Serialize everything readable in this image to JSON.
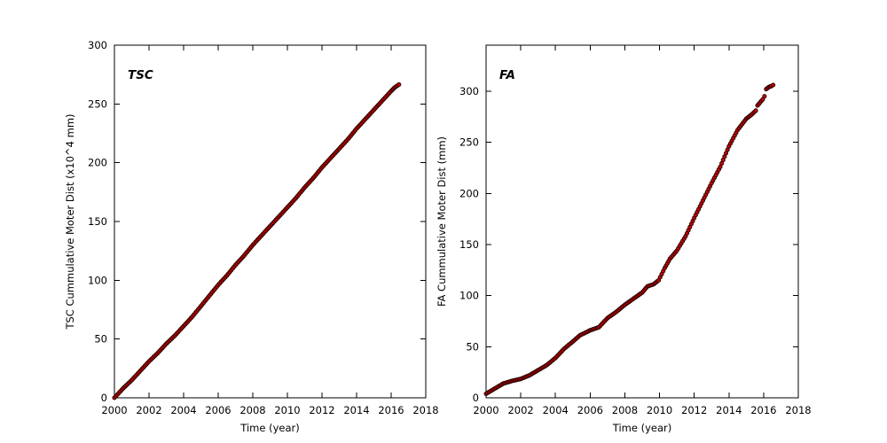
{
  "figure": {
    "background": "#ffffff",
    "axis_color": "#000000"
  },
  "chart_data": [
    {
      "id": "tsc",
      "type": "scatter",
      "title": "TSC",
      "xlabel": "Time (year)",
      "ylabel": "TSC Cummulative Moter Dist (x10^4 mm)",
      "xlim": [
        2000,
        2018
      ],
      "ylim": [
        0,
        300
      ],
      "xticks": [
        2000,
        2002,
        2004,
        2006,
        2008,
        2010,
        2012,
        2014,
        2016,
        2018
      ],
      "yticks": [
        0,
        50,
        100,
        150,
        200,
        250,
        300
      ],
      "grid": false,
      "legend": "none",
      "marker": {
        "shape": "circle",
        "fill": "#cc0000",
        "edge": "#1a0000"
      },
      "series": [
        {
          "name": "TSC cumulative motor distance",
          "segments": [
            [
              [
                2000,
                0
              ],
              [
                2000.5,
                8
              ],
              [
                2001,
                15
              ],
              [
                2001.5,
                23
              ],
              [
                2002,
                31
              ],
              [
                2002.5,
                38
              ],
              [
                2003,
                46
              ],
              [
                2003.5,
                53
              ],
              [
                2004,
                61
              ],
              [
                2004.5,
                69
              ],
              [
                2005,
                78
              ],
              [
                2005.5,
                87
              ],
              [
                2006,
                96
              ],
              [
                2006.5,
                104
              ],
              [
                2007,
                113
              ],
              [
                2007.5,
                121
              ],
              [
                2008,
                130
              ],
              [
                2008.5,
                138
              ],
              [
                2009,
                146
              ],
              [
                2009.5,
                154
              ],
              [
                2010,
                162
              ],
              [
                2010.5,
                170
              ],
              [
                2011,
                179
              ],
              [
                2011.5,
                187
              ],
              [
                2012,
                196
              ],
              [
                2012.5,
                204
              ],
              [
                2013,
                212
              ],
              [
                2013.5,
                220
              ],
              [
                2014,
                229
              ],
              [
                2014.5,
                237
              ],
              [
                2015,
                245
              ],
              [
                2015.5,
                253
              ],
              [
                2016,
                261
              ],
              [
                2016.2,
                264
              ],
              [
                2016.45,
                266.5
              ]
            ]
          ]
        }
      ]
    },
    {
      "id": "fa",
      "type": "scatter",
      "title": "FA",
      "xlabel": "Time (year)",
      "ylabel": "FA Cummulative Moter Dist (mm)",
      "xlim": [
        2000,
        2018
      ],
      "ylim": [
        0,
        345
      ],
      "xticks": [
        2000,
        2002,
        2004,
        2006,
        2008,
        2010,
        2012,
        2014,
        2016,
        2018
      ],
      "yticks": [
        0,
        50,
        100,
        150,
        200,
        250,
        300
      ],
      "grid": false,
      "legend": "none",
      "marker": {
        "shape": "circle",
        "fill": "#cc0000",
        "edge": "#1a0000"
      },
      "series": [
        {
          "name": "FA cumulative motor distance",
          "segments": [
            [
              [
                2000,
                4
              ],
              [
                2000.5,
                9
              ],
              [
                2001,
                14
              ],
              [
                2001.5,
                16.5
              ],
              [
                2002,
                18.5
              ],
              [
                2002.5,
                22
              ],
              [
                2003,
                27
              ],
              [
                2003.5,
                32
              ],
              [
                2004,
                39
              ],
              [
                2004.5,
                48
              ],
              [
                2005,
                55
              ],
              [
                2005.4,
                61
              ],
              [
                2006,
                66
              ],
              [
                2006.5,
                69
              ],
              [
                2007,
                78
              ],
              [
                2007.5,
                84
              ],
              [
                2008,
                91
              ],
              [
                2008.5,
                97
              ],
              [
                2009,
                103
              ],
              [
                2009.3,
                109
              ],
              [
                2009.65,
                111
              ],
              [
                2009.95,
                115
              ],
              [
                2010.3,
                127
              ],
              [
                2010.6,
                136
              ],
              [
                2011,
                144
              ],
              [
                2011.5,
                158
              ],
              [
                2012,
                176
              ],
              [
                2012.5,
                193
              ],
              [
                2013,
                210
              ],
              [
                2013.5,
                226
              ],
              [
                2014,
                246
              ],
              [
                2014.5,
                262
              ],
              [
                2015,
                273
              ],
              [
                2015.3,
                277
              ],
              [
                2015.55,
                281
              ]
            ],
            [
              [
                2015.65,
                286
              ],
              [
                2015.8,
                289
              ],
              [
                2015.95,
                292
              ],
              [
                2016.05,
                295
              ]
            ],
            [
              [
                2016.15,
                302
              ],
              [
                2016.3,
                304
              ],
              [
                2016.45,
                305
              ],
              [
                2016.55,
                306
              ]
            ]
          ]
        }
      ]
    }
  ]
}
